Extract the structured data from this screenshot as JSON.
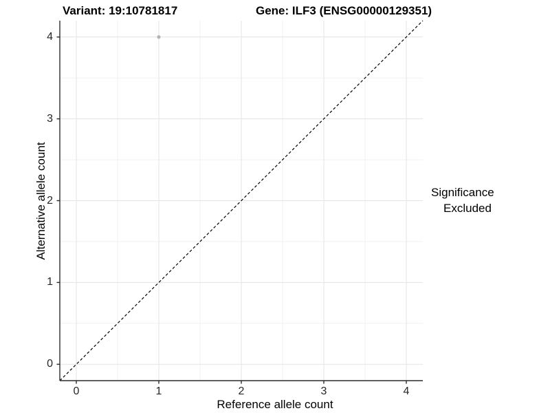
{
  "figure": {
    "title_variant": "Variant: 19:10781817",
    "title_gene": "Gene: ILF3 (ENSG00000129351)"
  },
  "axes": {
    "x_label": "Reference allele count",
    "y_label": "Alternative allele count"
  },
  "legend": {
    "title": "Significance",
    "items": [
      {
        "label": "Excluded",
        "color": "#b5b5b5"
      }
    ]
  },
  "chart_data": {
    "type": "scatter",
    "xlabel": "Reference allele count",
    "ylabel": "Alternative allele count",
    "xlim": [
      -0.2,
      4.2
    ],
    "ylim": [
      -0.2,
      4.2
    ],
    "xticks": [
      0,
      1,
      2,
      3,
      4
    ],
    "yticks": [
      0,
      1,
      2,
      3,
      4
    ],
    "xticks_minor": [
      0.5,
      1.5,
      2.5,
      3.5
    ],
    "yticks_minor": [
      0.5,
      1.5,
      2.5,
      3.5
    ],
    "grid": "on",
    "legend_position": "right",
    "series": [
      {
        "name": "Excluded",
        "color": "#b5b5b5",
        "marker": "circle",
        "marker_radius": 2.6,
        "points": [
          [
            1,
            4
          ]
        ]
      }
    ],
    "reference_line": {
      "kind": "identity y=x",
      "from": [
        -0.2,
        -0.2
      ],
      "to": [
        4.2,
        4.2
      ],
      "style": "dashed",
      "color": "#000000"
    }
  },
  "colors": {
    "background": "#ffffff",
    "grid_major": "#e3e3e3",
    "grid_minor": "#f1f1f1",
    "axis_line": "#2a2a2a",
    "tick_mark": "#2a2a2a",
    "text": "#000000",
    "point": "#b5b5b5"
  }
}
